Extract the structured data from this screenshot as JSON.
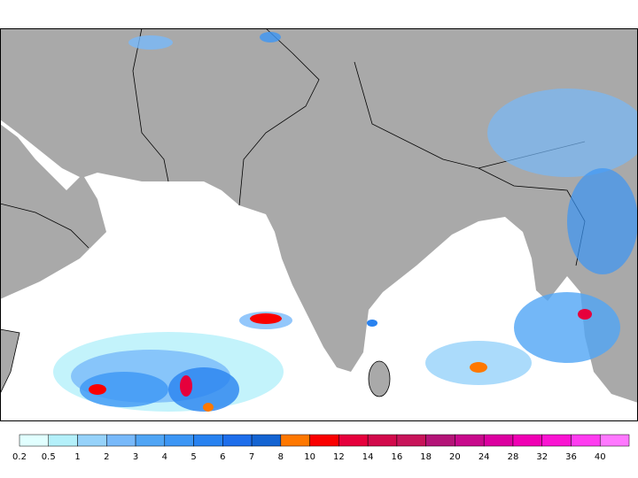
{
  "legend": {
    "levels": [
      0.2,
      0.5,
      1,
      2,
      3,
      4,
      5,
      6,
      7,
      8,
      10,
      12,
      14,
      16,
      18,
      20,
      24,
      28,
      32,
      36,
      40
    ],
    "colors": [
      "#e1ffff",
      "#b4f0fa",
      "#96d2fa",
      "#78b9fa",
      "#50a5f5",
      "#3c96f5",
      "#2882f0",
      "#1e6eeb",
      "#1464d2",
      "#ff7800",
      "#fa0000",
      "#e6003c",
      "#d20a4b",
      "#c8145a",
      "#b41478",
      "#c80a8c",
      "#dc00a0",
      "#f000b4",
      "#fa14d2",
      "#ff3cf0",
      "#ff78ff"
    ]
  }
}
